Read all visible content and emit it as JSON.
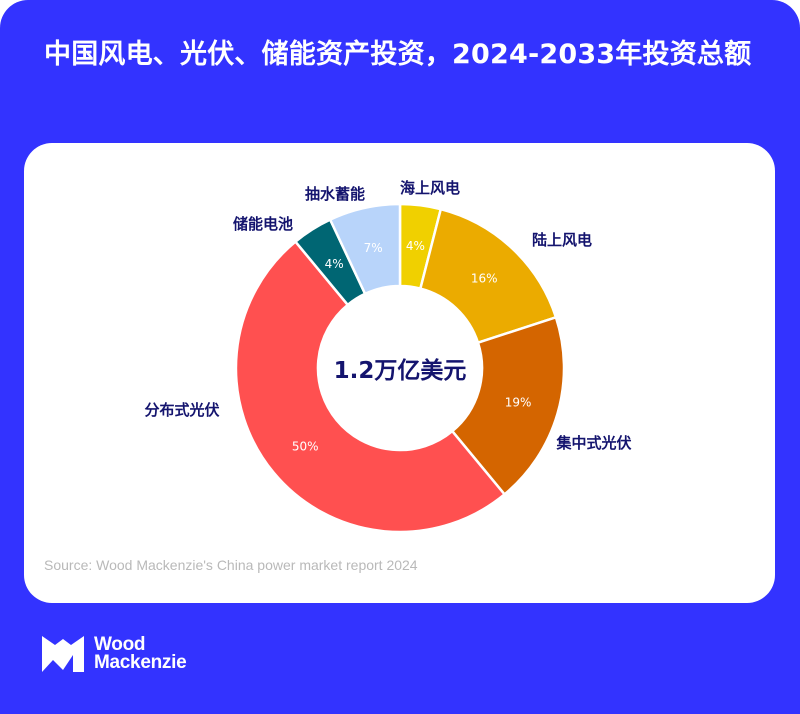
{
  "title": "中国风电、光伏、储能资产投资，2024-2033年投资总额",
  "source": "Source: Wood Mackenzie's China power market report 2024",
  "logo": {
    "line1": "Wood",
    "line2": "Mackenzie",
    "icon": "wood-mackenzie-logo-icon"
  },
  "colors": {
    "background": "#3333ff",
    "card": "#ffffff",
    "label": "#14146e"
  },
  "chart_data": {
    "type": "pie",
    "variant": "donut",
    "title": "中国风电、光伏、储能资产投资，2024-2033年投资总额",
    "center_label": "1.2万亿美元",
    "start": "top",
    "direction": "clockwise",
    "unit": "%",
    "slices": [
      {
        "label": "海上风电",
        "value": 4,
        "value_label": "4%",
        "color": "#f0d000"
      },
      {
        "label": "陆上风电",
        "value": 16,
        "value_label": "16%",
        "color": "#ebab00"
      },
      {
        "label": "集中式光伏",
        "value": 19,
        "value_label": "19%",
        "color": "#d46500"
      },
      {
        "label": "分布式光伏",
        "value": 50,
        "value_label": "50%",
        "color": "#ff5050"
      },
      {
        "label": "储能电池",
        "value": 4,
        "value_label": "4%",
        "color": "#006673"
      },
      {
        "label": "抽水蓄能",
        "value": 7,
        "value_label": "7%",
        "color": "#b8d4fa"
      }
    ]
  }
}
